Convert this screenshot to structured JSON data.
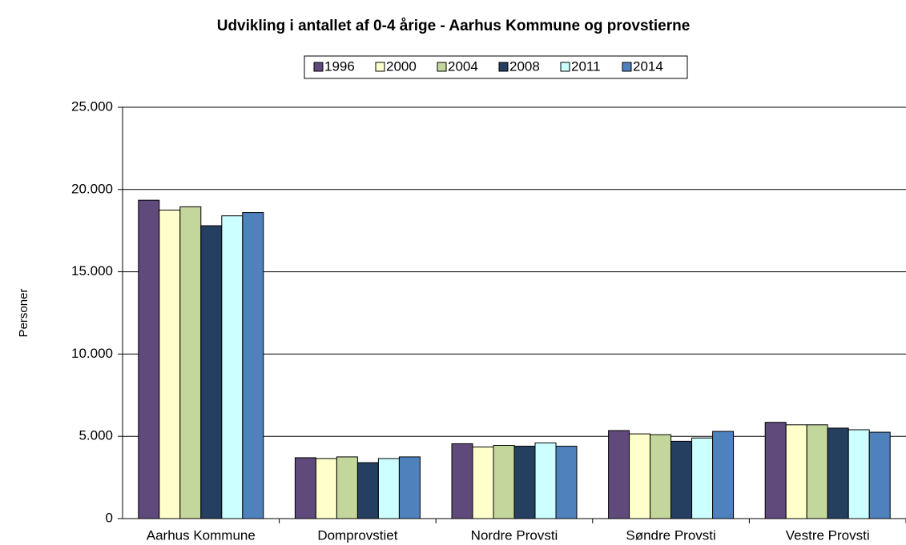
{
  "chart_data": {
    "type": "bar",
    "title": "Udvikling i antallet af 0-4 årige - Aarhus Kommune og provstierne",
    "y_label": "Personer",
    "categories": [
      "Aarhus Kommune",
      "Domprovstiet",
      "Nordre Provsti",
      "Søndre Provsti",
      "Vestre Provsti"
    ],
    "series": [
      {
        "name": "1996",
        "color": "#604a7b",
        "values": [
          19350,
          3700,
          4550,
          5350,
          5850
        ]
      },
      {
        "name": "2000",
        "color": "#ffffcc",
        "values": [
          18750,
          3650,
          4350,
          5150,
          5700
        ]
      },
      {
        "name": "2004",
        "color": "#c3d69b",
        "values": [
          18950,
          3750,
          4450,
          5100,
          5700
        ]
      },
      {
        "name": "2008",
        "color": "#243f60",
        "values": [
          17800,
          3400,
          4400,
          4700,
          5500
        ]
      },
      {
        "name": "2011",
        "color": "#ccffff",
        "values": [
          18400,
          3650,
          4600,
          4900,
          5400
        ]
      },
      {
        "name": "2014",
        "color": "#4f81bd",
        "values": [
          18600,
          3750,
          4400,
          5300,
          5250
        ]
      }
    ],
    "ylim": [
      0,
      25000
    ],
    "yticks": [
      0,
      {
        "value": 5000,
        "label": "5.000"
      },
      {
        "value": 10000,
        "label": "10.000"
      },
      {
        "value": 15000,
        "label": "15.000"
      },
      {
        "value": 20000,
        "label": "20.000"
      },
      {
        "value": 25000,
        "label": "25.000"
      }
    ],
    "grid": true,
    "legend": "top"
  }
}
